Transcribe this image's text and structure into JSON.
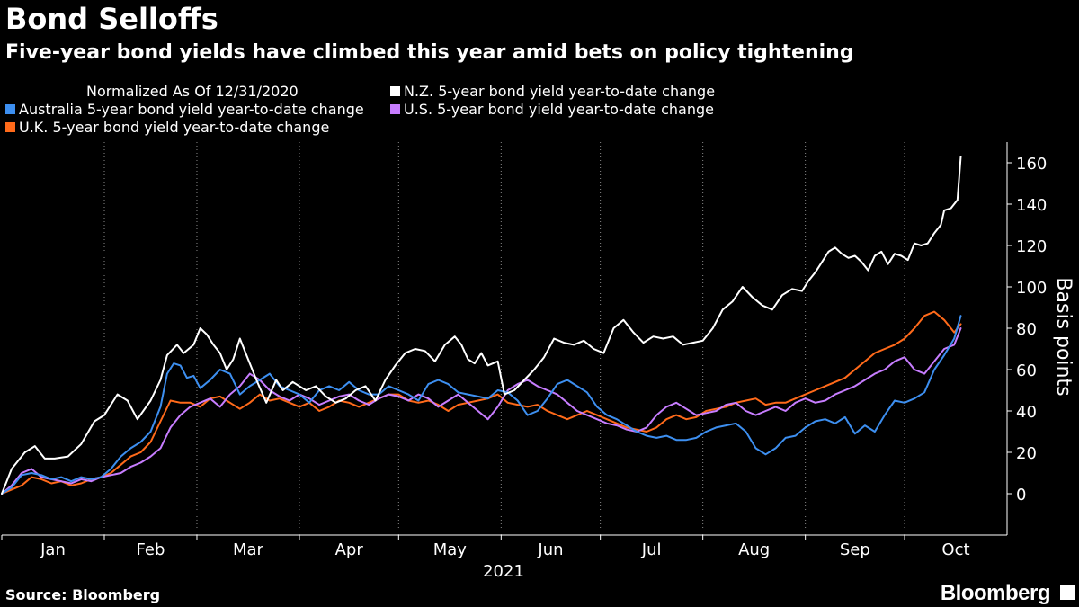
{
  "title": "Bond Selloffs",
  "subtitle": "Five-year bond yields have climbed this year amid bets on policy tightening",
  "source": "Source: Bloomberg",
  "brand": "Bloomberg",
  "legend": {
    "note": "Normalized As Of 12/31/2020",
    "items": [
      {
        "label": "N.Z. 5-year bond yield year-to-date change",
        "color": "#ffffff"
      },
      {
        "label": "Australia 5-year bond yield year-to-date change",
        "color": "#3d8ff0"
      },
      {
        "label": "U.S. 5-year bond yield year-to-date change",
        "color": "#c77dff"
      },
      {
        "label": "U.K. 5-year bond yield year-to-date change",
        "color": "#ff6a1a"
      }
    ]
  },
  "chart_data": {
    "type": "line",
    "title": "Bond Selloffs",
    "xlabel": "2021",
    "ylabel": "Basis points",
    "ylim": [
      -20,
      170
    ],
    "yticks": [
      0,
      20,
      40,
      60,
      80,
      100,
      120,
      140,
      160
    ],
    "xlim_day": [
      0,
      291
    ],
    "months": [
      {
        "label": "Jan",
        "day": 0
      },
      {
        "label": "Feb",
        "day": 31
      },
      {
        "label": "Mar",
        "day": 59
      },
      {
        "label": "Apr",
        "day": 90
      },
      {
        "label": "May",
        "day": 120
      },
      {
        "label": "Jun",
        "day": 151
      },
      {
        "label": "Jul",
        "day": 181
      },
      {
        "label": "Aug",
        "day": 212
      },
      {
        "label": "Sep",
        "day": 243
      },
      {
        "label": "Oct",
        "day": 273
      }
    ],
    "series": [
      {
        "name": "N.Z. 5-year bond yield year-to-date change",
        "color": "#ffffff",
        "x": [
          0,
          3,
          7,
          10,
          13,
          16,
          20,
          24,
          28,
          31,
          35,
          38,
          41,
          45,
          48,
          50,
          53,
          55,
          58,
          60,
          62,
          64,
          66,
          68,
          70,
          72,
          74,
          77,
          80,
          83,
          85,
          88,
          92,
          95,
          98,
          101,
          104,
          107,
          110,
          113,
          116,
          119,
          122,
          125,
          128,
          131,
          134,
          137,
          139,
          141,
          143,
          145,
          147,
          150,
          152,
          155,
          158,
          161,
          164,
          167,
          170,
          173,
          176,
          179,
          182,
          185,
          188,
          191,
          194,
          197,
          200,
          203,
          206,
          209,
          212,
          215,
          218,
          221,
          224,
          227,
          230,
          233,
          236,
          239,
          242,
          244,
          246,
          248,
          250,
          252,
          254,
          256,
          258,
          260,
          262,
          264,
          266,
          268,
          270,
          272,
          274,
          276,
          278,
          280,
          282,
          284,
          285,
          287,
          289,
          290
        ],
        "y": [
          0,
          12,
          20,
          23,
          17,
          17,
          18,
          24,
          35,
          38,
          48,
          45,
          36,
          45,
          55,
          67,
          72,
          68,
          72,
          80,
          77,
          72,
          68,
          60,
          65,
          75,
          67,
          55,
          44,
          55,
          50,
          54,
          50,
          52,
          47,
          44,
          46,
          50,
          52,
          45,
          55,
          62,
          68,
          70,
          69,
          64,
          72,
          76,
          72,
          65,
          63,
          68,
          62,
          64,
          48,
          50,
          55,
          60,
          66,
          75,
          73,
          72,
          74,
          70,
          68,
          80,
          84,
          78,
          73,
          76,
          75,
          76,
          72,
          73,
          74,
          80,
          89,
          93,
          100,
          95,
          91,
          89,
          96,
          99,
          98,
          103,
          107,
          112,
          117,
          119,
          116,
          114,
          115,
          112,
          108,
          115,
          117,
          111,
          116,
          115,
          113,
          121,
          120,
          121,
          126,
          130,
          137,
          138,
          142,
          163
        ]
      },
      {
        "name": "Australia 5-year bond yield year-to-date change",
        "color": "#3d8ff0",
        "x": [
          0,
          3,
          6,
          9,
          12,
          15,
          18,
          21,
          24,
          27,
          30,
          33,
          36,
          39,
          42,
          45,
          48,
          50,
          52,
          54,
          56,
          58,
          60,
          63,
          66,
          69,
          72,
          75,
          78,
          81,
          84,
          87,
          90,
          93,
          96,
          99,
          102,
          105,
          108,
          111,
          114,
          117,
          120,
          123,
          126,
          129,
          132,
          135,
          138,
          141,
          144,
          147,
          150,
          153,
          156,
          159,
          162,
          165,
          168,
          171,
          174,
          177,
          180,
          183,
          186,
          189,
          192,
          195,
          198,
          201,
          204,
          207,
          210,
          213,
          216,
          219,
          222,
          225,
          228,
          231,
          234,
          237,
          240,
          243,
          246,
          249,
          252,
          255,
          258,
          261,
          264,
          267,
          270,
          273,
          276,
          279,
          282,
          285,
          288,
          290
        ],
        "y": [
          0,
          3,
          9,
          10,
          9,
          7,
          8,
          6,
          8,
          7,
          8,
          12,
          18,
          22,
          25,
          30,
          42,
          58,
          63,
          62,
          56,
          57,
          51,
          55,
          60,
          58,
          48,
          52,
          55,
          58,
          52,
          50,
          48,
          44,
          50,
          52,
          50,
          54,
          50,
          48,
          48,
          52,
          50,
          48,
          45,
          53,
          55,
          53,
          49,
          48,
          47,
          46,
          50,
          49,
          45,
          38,
          40,
          46,
          53,
          55,
          52,
          49,
          42,
          38,
          36,
          33,
          30,
          28,
          27,
          28,
          26,
          26,
          27,
          30,
          32,
          33,
          34,
          30,
          22,
          19,
          22,
          27,
          28,
          32,
          35,
          36,
          34,
          37,
          29,
          33,
          30,
          38,
          45,
          44,
          46,
          49,
          60,
          67,
          75,
          86
        ]
      },
      {
        "name": "U.S. 5-year bond yield year-to-date change",
        "color": "#c77dff",
        "x": [
          0,
          3,
          6,
          9,
          12,
          15,
          18,
          21,
          24,
          27,
          30,
          33,
          36,
          39,
          42,
          45,
          48,
          51,
          54,
          57,
          60,
          63,
          66,
          69,
          72,
          75,
          78,
          81,
          84,
          87,
          90,
          93,
          96,
          99,
          102,
          105,
          108,
          111,
          114,
          117,
          120,
          123,
          126,
          129,
          132,
          135,
          138,
          141,
          144,
          147,
          150,
          153,
          156,
          159,
          162,
          165,
          168,
          171,
          174,
          177,
          180,
          183,
          186,
          189,
          192,
          195,
          198,
          201,
          204,
          207,
          210,
          213,
          216,
          219,
          222,
          225,
          228,
          231,
          234,
          237,
          240,
          243,
          246,
          249,
          252,
          255,
          258,
          261,
          264,
          267,
          270,
          273,
          276,
          279,
          282,
          285,
          288,
          290
        ],
        "y": [
          0,
          4,
          10,
          12,
          8,
          7,
          6,
          5,
          7,
          6,
          8,
          9,
          10,
          13,
          15,
          18,
          22,
          32,
          38,
          42,
          44,
          46,
          42,
          48,
          52,
          58,
          55,
          50,
          47,
          45,
          48,
          46,
          43,
          45,
          47,
          48,
          45,
          43,
          46,
          48,
          47,
          45,
          48,
          46,
          42,
          45,
          48,
          44,
          40,
          36,
          42,
          50,
          53,
          55,
          52,
          50,
          48,
          44,
          40,
          38,
          36,
          34,
          33,
          31,
          30,
          32,
          38,
          42,
          44,
          41,
          38,
          39,
          40,
          43,
          44,
          40,
          38,
          40,
          42,
          40,
          44,
          46,
          44,
          45,
          48,
          50,
          52,
          55,
          58,
          60,
          64,
          66,
          60,
          58,
          64,
          70,
          72,
          80
        ]
      },
      {
        "name": "U.K. 5-year bond yield year-to-date change",
        "color": "#ff6a1a",
        "x": [
          0,
          3,
          6,
          9,
          12,
          15,
          18,
          21,
          24,
          27,
          30,
          33,
          36,
          39,
          42,
          45,
          48,
          51,
          54,
          57,
          60,
          63,
          66,
          69,
          72,
          75,
          78,
          81,
          84,
          87,
          90,
          93,
          96,
          99,
          102,
          105,
          108,
          111,
          114,
          117,
          120,
          123,
          126,
          129,
          132,
          135,
          138,
          141,
          144,
          147,
          150,
          153,
          156,
          159,
          162,
          165,
          168,
          171,
          174,
          177,
          180,
          183,
          186,
          189,
          192,
          195,
          198,
          201,
          204,
          207,
          210,
          213,
          216,
          219,
          222,
          225,
          228,
          231,
          234,
          237,
          240,
          243,
          246,
          249,
          252,
          255,
          258,
          261,
          264,
          267,
          270,
          273,
          276,
          279,
          282,
          285,
          288,
          290
        ],
        "y": [
          0,
          2,
          4,
          8,
          7,
          5,
          6,
          4,
          5,
          7,
          8,
          10,
          14,
          18,
          20,
          25,
          35,
          45,
          44,
          44,
          42,
          46,
          47,
          44,
          41,
          44,
          48,
          45,
          46,
          44,
          42,
          44,
          40,
          42,
          45,
          44,
          42,
          44,
          46,
          48,
          48,
          45,
          44,
          45,
          43,
          40,
          43,
          44,
          45,
          46,
          48,
          44,
          43,
          42,
          43,
          40,
          38,
          36,
          38,
          40,
          38,
          36,
          34,
          32,
          31,
          30,
          32,
          36,
          38,
          36,
          37,
          40,
          41,
          42,
          44,
          45,
          46,
          43,
          44,
          44,
          46,
          48,
          50,
          52,
          54,
          56,
          60,
          64,
          68,
          70,
          72,
          75,
          80,
          86,
          88,
          84,
          78,
          82
        ]
      }
    ]
  }
}
